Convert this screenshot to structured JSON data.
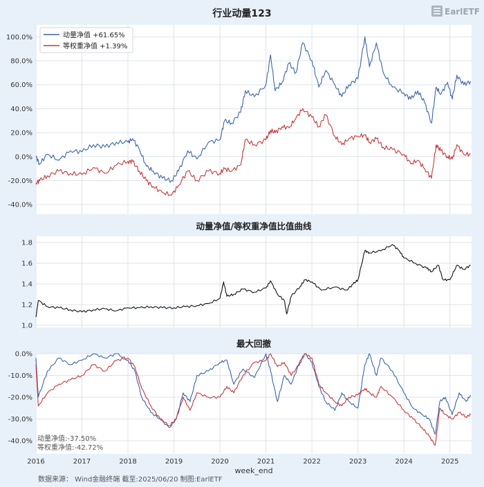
{
  "header": {
    "title": "行业动量123",
    "logo": "EarlETF"
  },
  "colors": {
    "momentum": "#3a64a8",
    "equal": "#c4373a",
    "ratio": "#111111"
  },
  "footer": {
    "source": "数据来源：  Wind金融终端 截至:2025/06/20 制图:EarlETF",
    "xlabel": "week_end"
  },
  "chart_data": [
    {
      "type": "line",
      "panel": "nav",
      "title": "行业动量123",
      "x_range": [
        2016.0,
        2025.47
      ],
      "ylim": [
        -48,
        110
      ],
      "y_ticks": [
        "-40.0%",
        "-20.0%",
        "0.0%",
        "20.0%",
        "40.0%",
        "60.0%",
        "80.0%",
        "100.0%"
      ],
      "y_tick_values": [
        -40,
        -20,
        0,
        20,
        40,
        60,
        80,
        100
      ],
      "legend_position": "top-left",
      "grid": true,
      "series": [
        {
          "name": "动量净值",
          "legend": "动量净值  +61.65%",
          "color": "#3a64a8",
          "x": [
            2016.0,
            2016.08,
            2016.25,
            2016.5,
            2016.75,
            2017.0,
            2017.25,
            2017.5,
            2017.75,
            2018.0,
            2018.1,
            2018.25,
            2018.4,
            2018.55,
            2018.75,
            2018.95,
            2019.1,
            2019.3,
            2019.5,
            2019.75,
            2020.0,
            2020.1,
            2020.25,
            2020.45,
            2020.55,
            2020.75,
            2021.0,
            2021.1,
            2021.2,
            2021.35,
            2021.5,
            2021.65,
            2021.8,
            2022.0,
            2022.15,
            2022.3,
            2022.5,
            2022.65,
            2022.8,
            2023.0,
            2023.15,
            2023.25,
            2023.4,
            2023.55,
            2023.75,
            2024.0,
            2024.15,
            2024.3,
            2024.45,
            2024.6,
            2024.7,
            2024.8,
            2024.95,
            2025.05,
            2025.15,
            2025.3,
            2025.45
          ],
          "y": [
            0,
            -6,
            2,
            -3,
            5,
            4,
            10,
            8,
            12,
            12,
            15,
            6,
            -8,
            -12,
            -18,
            -20,
            -12,
            5,
            -2,
            12,
            14,
            30,
            28,
            37,
            55,
            50,
            60,
            85,
            55,
            62,
            78,
            70,
            95,
            80,
            58,
            72,
            60,
            50,
            60,
            65,
            100,
            75,
            95,
            70,
            58,
            53,
            48,
            55,
            45,
            28,
            58,
            52,
            62,
            48,
            68,
            60,
            63
          ]
        },
        {
          "name": "等权重净值",
          "legend": "等权重净值  +1.39%",
          "color": "#c4373a",
          "x": [
            2016.0,
            2016.08,
            2016.25,
            2016.5,
            2016.75,
            2017.0,
            2017.25,
            2017.5,
            2017.75,
            2018.0,
            2018.1,
            2018.25,
            2018.4,
            2018.55,
            2018.75,
            2018.95,
            2019.1,
            2019.3,
            2019.5,
            2019.75,
            2020.0,
            2020.1,
            2020.25,
            2020.45,
            2020.55,
            2020.75,
            2021.0,
            2021.1,
            2021.2,
            2021.35,
            2021.5,
            2021.65,
            2021.8,
            2022.0,
            2022.15,
            2022.3,
            2022.5,
            2022.65,
            2022.8,
            2023.0,
            2023.15,
            2023.25,
            2023.4,
            2023.55,
            2023.75,
            2024.0,
            2024.15,
            2024.3,
            2024.45,
            2024.6,
            2024.7,
            2024.8,
            2024.95,
            2025.05,
            2025.15,
            2025.3,
            2025.45
          ],
          "y": [
            -22,
            -20,
            -16,
            -12,
            -14,
            -15,
            -9,
            -14,
            -7,
            -4,
            -4,
            -12,
            -20,
            -25,
            -30,
            -32,
            -24,
            -12,
            -20,
            -12,
            -14,
            -10,
            -12,
            -7,
            14,
            10,
            14,
            22,
            20,
            25,
            24,
            32,
            40,
            33,
            25,
            35,
            17,
            10,
            15,
            17,
            18,
            12,
            15,
            8,
            6,
            2,
            -6,
            -3,
            -10,
            -18,
            10,
            5,
            0,
            -2,
            10,
            2,
            2
          ]
        }
      ]
    },
    {
      "type": "line",
      "panel": "ratio",
      "title": "动量净值/等权重净值比值曲线",
      "x_range": [
        2016.0,
        2025.47
      ],
      "ylim": [
        0.98,
        1.86
      ],
      "y_ticks": [
        "1.0",
        "1.2",
        "1.4",
        "1.6",
        "1.8"
      ],
      "y_tick_values": [
        1.0,
        1.2,
        1.4,
        1.6,
        1.8
      ],
      "grid": true,
      "series": [
        {
          "color": "#111111",
          "x": [
            2016.0,
            2016.05,
            2016.25,
            2016.5,
            2016.75,
            2017.0,
            2017.25,
            2017.5,
            2017.75,
            2018.0,
            2018.25,
            2018.5,
            2018.75,
            2019.0,
            2019.25,
            2019.5,
            2019.75,
            2020.0,
            2020.08,
            2020.15,
            2020.3,
            2020.5,
            2020.75,
            2021.0,
            2021.1,
            2021.25,
            2021.4,
            2021.45,
            2021.55,
            2021.75,
            2021.85,
            2022.0,
            2022.2,
            2022.5,
            2022.75,
            2022.9,
            2023.0,
            2023.15,
            2023.25,
            2023.5,
            2023.75,
            2023.9,
            2024.0,
            2024.25,
            2024.5,
            2024.6,
            2024.75,
            2024.85,
            2025.0,
            2025.15,
            2025.3,
            2025.45
          ],
          "y": [
            1.08,
            1.24,
            1.18,
            1.17,
            1.15,
            1.13,
            1.15,
            1.16,
            1.14,
            1.17,
            1.17,
            1.18,
            1.17,
            1.17,
            1.18,
            1.19,
            1.21,
            1.26,
            1.42,
            1.28,
            1.3,
            1.35,
            1.32,
            1.36,
            1.43,
            1.3,
            1.24,
            1.11,
            1.28,
            1.38,
            1.44,
            1.42,
            1.34,
            1.37,
            1.34,
            1.4,
            1.44,
            1.72,
            1.7,
            1.72,
            1.78,
            1.72,
            1.65,
            1.6,
            1.55,
            1.52,
            1.58,
            1.44,
            1.44,
            1.58,
            1.54,
            1.58
          ]
        }
      ]
    },
    {
      "type": "area",
      "panel": "drawdown",
      "title": "最大回撤",
      "x_range": [
        2016.0,
        2025.47
      ],
      "ylim": [
        -46,
        0
      ],
      "y_ticks": [
        "-40.0%",
        "-30.0%",
        "-20.0%",
        "-10.0%",
        "0.0%"
      ],
      "y_tick_values": [
        -40,
        -30,
        -20,
        -10,
        0
      ],
      "x_ticks": [
        "2016",
        "2017",
        "2018",
        "2019",
        "2020",
        "2021",
        "2022",
        "2023",
        "2024",
        "2025"
      ],
      "x_tick_values": [
        2016,
        2017,
        2018,
        2019,
        2020,
        2021,
        2022,
        2023,
        2024,
        2025
      ],
      "grid": true,
      "annotations": [
        "动量净值:-37.50%",
        "等权重净值:-42.72%"
      ],
      "series": [
        {
          "name": "动量净值",
          "color": "#3a64a8",
          "x": [
            2016.0,
            2016.05,
            2016.25,
            2016.5,
            2016.75,
            2017.0,
            2017.25,
            2017.5,
            2017.75,
            2018.0,
            2018.15,
            2018.3,
            2018.5,
            2018.7,
            2018.9,
            2019.05,
            2019.2,
            2019.35,
            2019.5,
            2019.75,
            2020.0,
            2020.15,
            2020.3,
            2020.5,
            2020.75,
            2021.0,
            2021.1,
            2021.25,
            2021.4,
            2021.55,
            2021.75,
            2021.85,
            2022.0,
            2022.15,
            2022.3,
            2022.5,
            2022.65,
            2022.8,
            2023.0,
            2023.15,
            2023.25,
            2023.4,
            2023.5,
            2023.75,
            2024.0,
            2024.2,
            2024.4,
            2024.55,
            2024.68,
            2024.78,
            2024.9,
            2025.05,
            2025.2,
            2025.35,
            2025.45
          ],
          "y": [
            -2,
            -20,
            -8,
            -2,
            -5,
            -3,
            0,
            -2,
            0,
            -3,
            -8,
            -20,
            -27,
            -30,
            -34,
            -30,
            -18,
            -22,
            -10,
            -8,
            -4,
            -3,
            -14,
            -7,
            -11,
            0,
            -8,
            -22,
            -10,
            -14,
            -3,
            0,
            -4,
            -15,
            -22,
            -26,
            -18,
            -22,
            -25,
            -5,
            0,
            -10,
            -2,
            -8,
            -18,
            -25,
            -28,
            -30,
            -37,
            -22,
            -20,
            -28,
            -18,
            -22,
            -19
          ]
        },
        {
          "name": "等权重净值",
          "color": "#c4373a",
          "x": [
            2016.0,
            2016.05,
            2016.25,
            2016.5,
            2016.75,
            2017.0,
            2017.25,
            2017.5,
            2017.75,
            2018.0,
            2018.15,
            2018.3,
            2018.5,
            2018.7,
            2018.9,
            2019.05,
            2019.2,
            2019.35,
            2019.5,
            2019.75,
            2020.0,
            2020.15,
            2020.3,
            2020.5,
            2020.75,
            2021.0,
            2021.1,
            2021.25,
            2021.4,
            2021.55,
            2021.75,
            2021.85,
            2022.0,
            2022.15,
            2022.3,
            2022.5,
            2022.65,
            2022.8,
            2023.0,
            2023.15,
            2023.25,
            2023.4,
            2023.5,
            2023.75,
            2024.0,
            2024.2,
            2024.4,
            2024.55,
            2024.68,
            2024.78,
            2024.9,
            2025.05,
            2025.2,
            2025.35,
            2025.45
          ],
          "y": [
            -5,
            -24,
            -18,
            -14,
            -12,
            -10,
            -5,
            -8,
            -3,
            -2,
            -6,
            -16,
            -24,
            -30,
            -33,
            -30,
            -20,
            -26,
            -18,
            -20,
            -20,
            -15,
            -18,
            -10,
            -4,
            -3,
            0,
            -6,
            -4,
            -10,
            -4,
            0,
            -2,
            -14,
            -18,
            -22,
            -24,
            -20,
            -19,
            -16,
            -18,
            -20,
            -15,
            -20,
            -26,
            -30,
            -34,
            -38,
            -42,
            -25,
            -28,
            -30,
            -27,
            -29,
            -28
          ]
        }
      ]
    }
  ]
}
